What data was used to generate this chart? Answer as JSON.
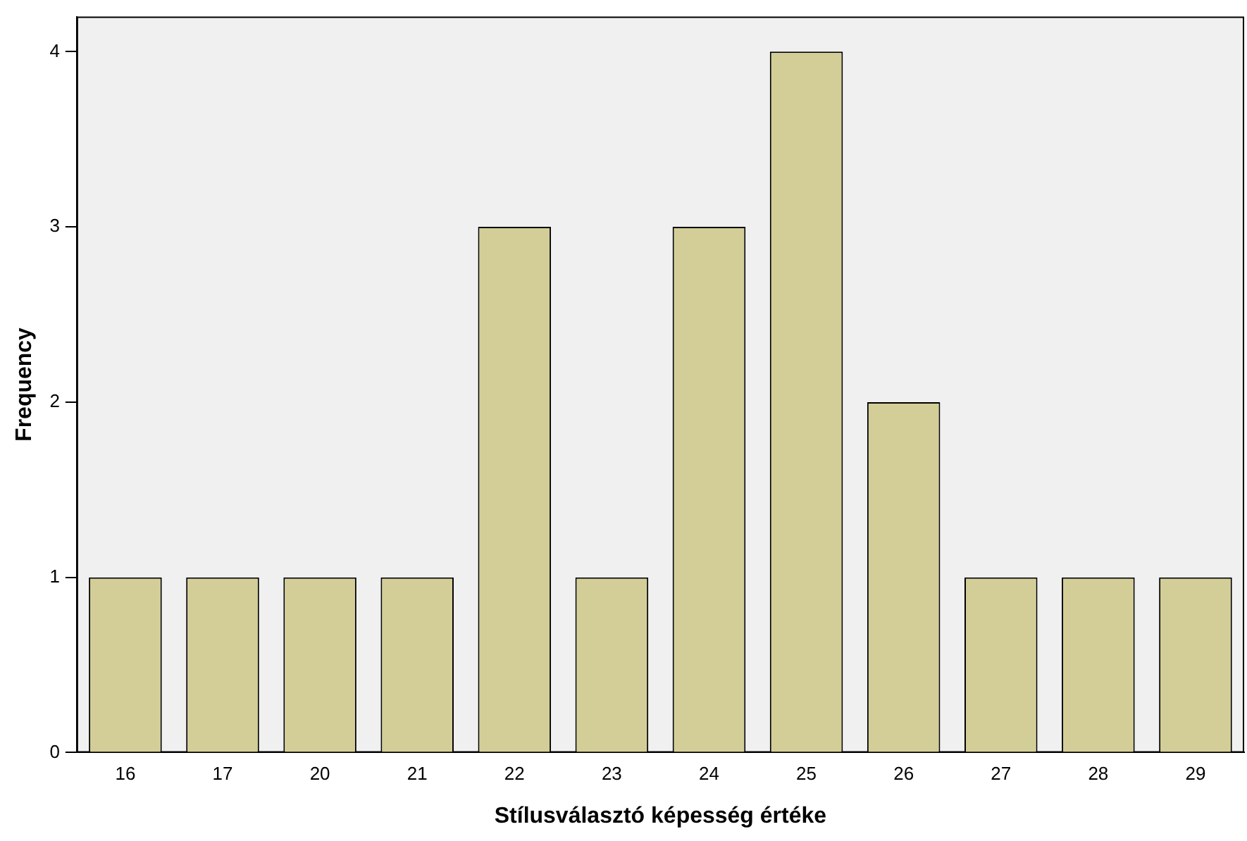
{
  "chart_data": {
    "type": "bar",
    "xlabel": "Stílusválasztó képesség értéke",
    "ylabel": "Frequency",
    "categories": [
      "16",
      "17",
      "20",
      "21",
      "22",
      "23",
      "24",
      "25",
      "26",
      "27",
      "28",
      "29"
    ],
    "values": [
      1,
      1,
      1,
      1,
      3,
      1,
      3,
      4,
      2,
      1,
      1,
      1
    ],
    "color": "#d3ce97",
    "ylim": [
      0,
      4.2
    ],
    "yticks": [
      0,
      1,
      2,
      3,
      4
    ],
    "grid": false,
    "legend": false
  }
}
